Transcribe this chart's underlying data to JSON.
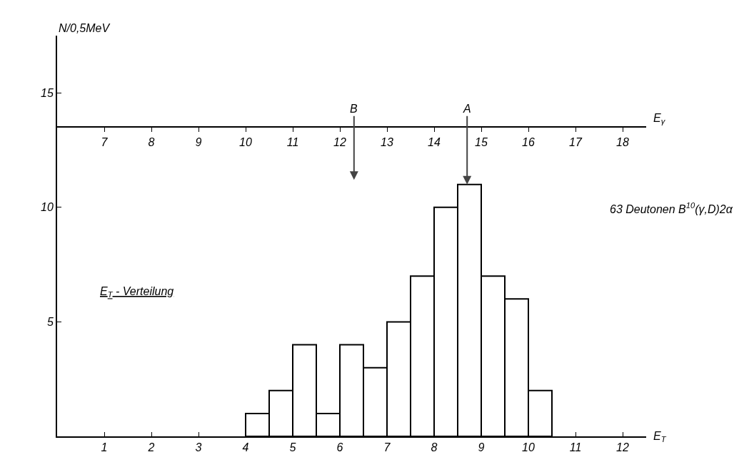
{
  "chart_data": {
    "type": "histogram",
    "bins": [
      4,
      4.5,
      5,
      5.5,
      6,
      6.5,
      7,
      7.5,
      8,
      8.5,
      9,
      9.5,
      10,
      10.5
    ],
    "values": [
      1,
      2,
      4,
      1,
      4,
      3,
      5,
      7,
      10,
      11,
      7,
      6,
      2
    ],
    "color": "#000000",
    "xlabel": "E$_{T}$",
    "ylabel": "N/0,5MeV",
    "x2label": "E$_{γ}$",
    "xlim": [
      0,
      12.5
    ],
    "xticks": [
      1,
      2,
      3,
      4,
      5,
      6,
      7,
      8,
      9,
      10,
      11,
      12
    ],
    "ylim": [
      0,
      17.5
    ],
    "yticks": [
      5,
      10,
      15
    ],
    "x2lim": [
      6,
      18.5
    ],
    "x2ticks": [
      7,
      8,
      9,
      10,
      11,
      12,
      13,
      14,
      15,
      16,
      17,
      18
    ],
    "annotations": [
      "B",
      {
        "text": "A",
        "x": 8.7,
        "y": 11
      },
      "63 Deutonen B$^{10}$(γ,D)2α",
      "E$_{T}$ - Verteilung"
    ]
  }
}
